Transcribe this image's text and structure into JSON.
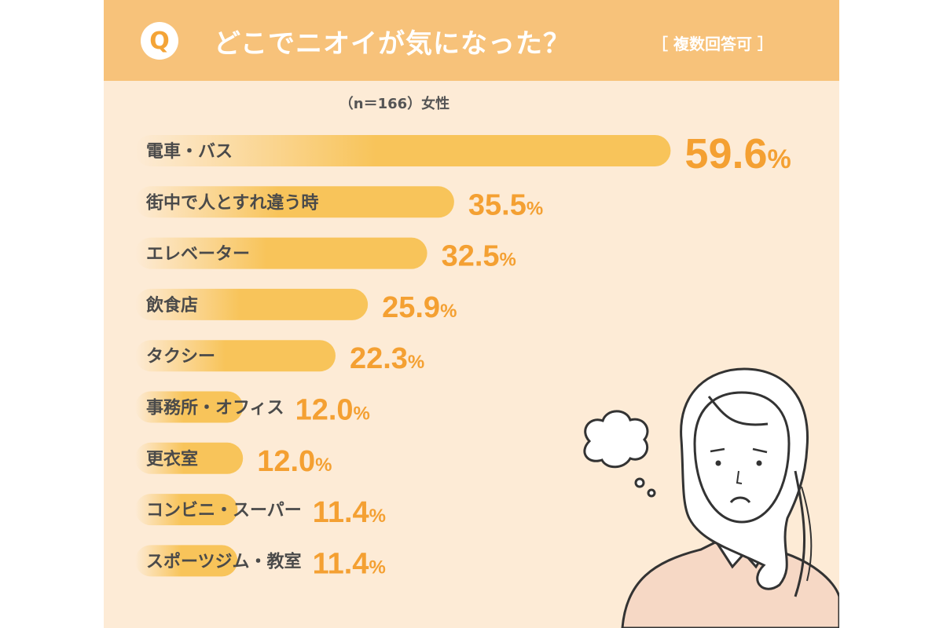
{
  "header": {
    "badge": "Q",
    "question": "どこでニオイが気になった？",
    "note": "［ 複数回答可 ］"
  },
  "sample_label": "（n＝166）女性",
  "colors": {
    "header_bg": "#f7c27a",
    "panel_bg": "#fdebd6",
    "bar_start": "#fdebd6",
    "bar_end": "#f8c45a",
    "value_text": "#f4a032",
    "label_text": "#4a4a4a"
  },
  "chart_data": {
    "type": "bar",
    "orientation": "horizontal",
    "title": "どこでニオイが気になった？",
    "subtitle": "（n＝166）女性",
    "categories": [
      "電車・バス",
      "街中で人とすれ違う時",
      "エレベーター",
      "飲食店",
      "タクシー",
      "事務所・オフィス",
      "更衣室",
      "コンビニ・スーパー",
      "スポーツジム・教室"
    ],
    "values": [
      59.6,
      35.5,
      32.5,
      25.9,
      22.3,
      12.0,
      12.0,
      11.4,
      11.4
    ],
    "value_labels": [
      "59.6",
      "35.5",
      "32.5",
      "25.9",
      "22.3",
      "12.0",
      "12.0",
      "11.4",
      "11.4"
    ],
    "unit": "%",
    "xlim": [
      0,
      60
    ],
    "grid": false
  }
}
